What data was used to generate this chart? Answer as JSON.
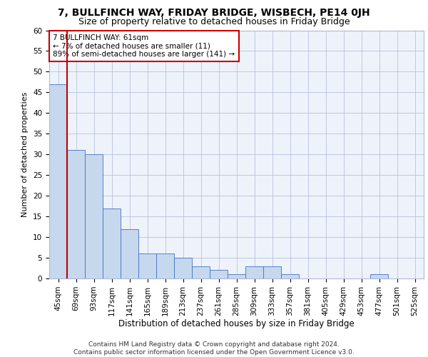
{
  "title1": "7, BULLFINCH WAY, FRIDAY BRIDGE, WISBECH, PE14 0JH",
  "title2": "Size of property relative to detached houses in Friday Bridge",
  "xlabel": "Distribution of detached houses by size in Friday Bridge",
  "ylabel": "Number of detached properties",
  "categories": [
    "45sqm",
    "69sqm",
    "93sqm",
    "117sqm",
    "141sqm",
    "165sqm",
    "189sqm",
    "213sqm",
    "237sqm",
    "261sqm",
    "285sqm",
    "309sqm",
    "333sqm",
    "357sqm",
    "381sqm",
    "405sqm",
    "429sqm",
    "453sqm",
    "477sqm",
    "501sqm",
    "525sqm"
  ],
  "values": [
    47,
    31,
    30,
    17,
    12,
    6,
    6,
    5,
    3,
    2,
    1,
    3,
    3,
    1,
    0,
    0,
    0,
    0,
    1,
    0,
    0
  ],
  "bar_color": "#c5d8ed",
  "bar_edge_color": "#4472c4",
  "highlight_color": "#c00000",
  "highlight_index": 1,
  "annotation_box_text": "7 BULLFINCH WAY: 61sqm\n← 7% of detached houses are smaller (11)\n89% of semi-detached houses are larger (141) →",
  "ylim": [
    0,
    60
  ],
  "yticks": [
    0,
    5,
    10,
    15,
    20,
    25,
    30,
    35,
    40,
    45,
    50,
    55,
    60
  ],
  "footer_line1": "Contains HM Land Registry data © Crown copyright and database right 2024.",
  "footer_line2": "Contains public sector information licensed under the Open Government Licence v3.0.",
  "plot_bg_color": "#eef2fa",
  "title1_fontsize": 10,
  "title2_fontsize": 9,
  "xlabel_fontsize": 8.5,
  "ylabel_fontsize": 8,
  "tick_fontsize": 7.5,
  "footer_fontsize": 6.5
}
